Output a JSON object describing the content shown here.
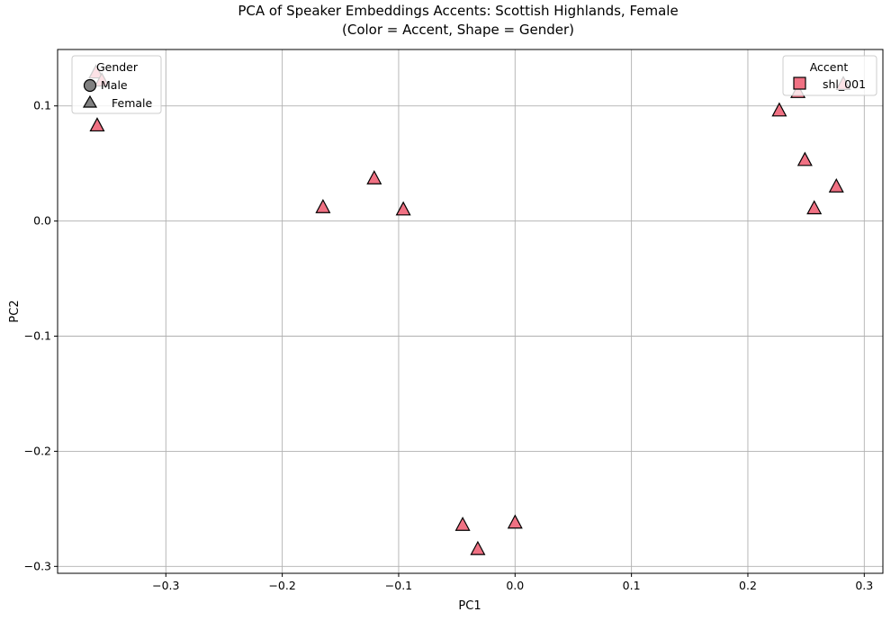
{
  "chart_data": {
    "type": "scatter",
    "title_line1": "PCA of Speaker Embeddings Accents: Scottish Highlands, Female",
    "title_line2": "(Color = Accent, Shape = Gender)",
    "xlabel": "PC1",
    "ylabel": "PC2",
    "xlim": [
      -0.393,
      0.316
    ],
    "ylim": [
      -0.306,
      0.149
    ],
    "xticks": [
      -0.3,
      -0.2,
      -0.1,
      0.0,
      0.1,
      0.2,
      0.3
    ],
    "xtick_labels": [
      "−0.3",
      "−0.2",
      "−0.1",
      "0.0",
      "0.1",
      "0.2",
      "0.3"
    ],
    "yticks": [
      -0.3,
      -0.2,
      -0.1,
      0.0,
      0.1
    ],
    "ytick_labels": [
      "−0.3",
      "−0.2",
      "−0.1",
      "0.0",
      "0.1"
    ],
    "grid": true,
    "gender_legend": {
      "title": "Gender",
      "placement": "upper-left",
      "entries": [
        {
          "label": "Male",
          "marker": "circle",
          "color": "#808080"
        },
        {
          "label": "Female",
          "marker": "triangle",
          "color": "#808080"
        }
      ]
    },
    "accent_legend": {
      "title": "Accent",
      "placement": "upper-right",
      "entries": [
        {
          "label": "shl_001",
          "marker": "square",
          "color": "#f07183"
        }
      ]
    },
    "series": [
      {
        "name": "shl_001",
        "gender": "Female",
        "marker": "triangle",
        "color": "#f07183",
        "points": [
          {
            "x": -0.36,
            "y": 0.129
          },
          {
            "x": -0.355,
            "y": 0.122
          },
          {
            "x": -0.359,
            "y": 0.083
          },
          {
            "x": -0.165,
            "y": 0.012
          },
          {
            "x": -0.121,
            "y": 0.037
          },
          {
            "x": -0.096,
            "y": 0.01
          },
          {
            "x": -0.045,
            "y": -0.264
          },
          {
            "x": -0.032,
            "y": -0.285
          },
          {
            "x": 0.0,
            "y": -0.262
          },
          {
            "x": 0.227,
            "y": 0.096
          },
          {
            "x": 0.243,
            "y": 0.112
          },
          {
            "x": 0.282,
            "y": 0.119
          },
          {
            "x": 0.249,
            "y": 0.053
          },
          {
            "x": 0.276,
            "y": 0.03
          },
          {
            "x": 0.257,
            "y": 0.011
          }
        ]
      }
    ]
  }
}
